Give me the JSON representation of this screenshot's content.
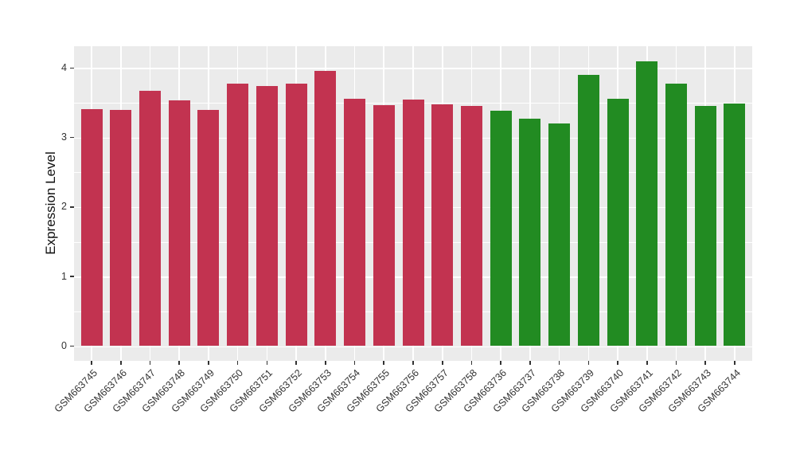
{
  "chart_data": {
    "type": "bar",
    "title": "",
    "xlabel": "",
    "ylabel": "Expression Level",
    "categories": [
      "GSM663745",
      "GSM663746",
      "GSM663747",
      "GSM663748",
      "GSM663749",
      "GSM663750",
      "GSM663751",
      "GSM663752",
      "GSM663753",
      "GSM663754",
      "GSM663755",
      "GSM663756",
      "GSM663757",
      "GSM663758",
      "GSM663736",
      "GSM663737",
      "GSM663738",
      "GSM663739",
      "GSM663740",
      "GSM663741",
      "GSM663742",
      "GSM663743",
      "GSM663744"
    ],
    "values": [
      3.41,
      3.4,
      3.67,
      3.53,
      3.4,
      3.77,
      3.74,
      3.77,
      3.96,
      3.56,
      3.46,
      3.55,
      3.48,
      3.45,
      3.39,
      3.27,
      3.2,
      3.9,
      3.56,
      4.1,
      3.78,
      3.45,
      3.49
    ],
    "bar_colors": [
      "#C23350",
      "#C23350",
      "#C23350",
      "#C23350",
      "#C23350",
      "#C23350",
      "#C23350",
      "#C23350",
      "#C23350",
      "#C23350",
      "#C23350",
      "#C23350",
      "#C23350",
      "#C23350",
      "#228B22",
      "#228B22",
      "#228B22",
      "#228B22",
      "#228B22",
      "#228B22",
      "#228B22",
      "#228B22",
      "#228B22"
    ],
    "y_ticks": [
      "0",
      "1",
      "2",
      "3",
      "4"
    ],
    "y_minor_ticks": [
      0.5,
      1.5,
      2.5,
      3.5
    ],
    "ylim": [
      0,
      4.3
    ],
    "grid": true,
    "legend": "none",
    "panel_background": "#EBEBEB",
    "grid_color": "#FFFFFF",
    "axis_text_color": "#333333",
    "tick_mark_color": "#333333"
  }
}
